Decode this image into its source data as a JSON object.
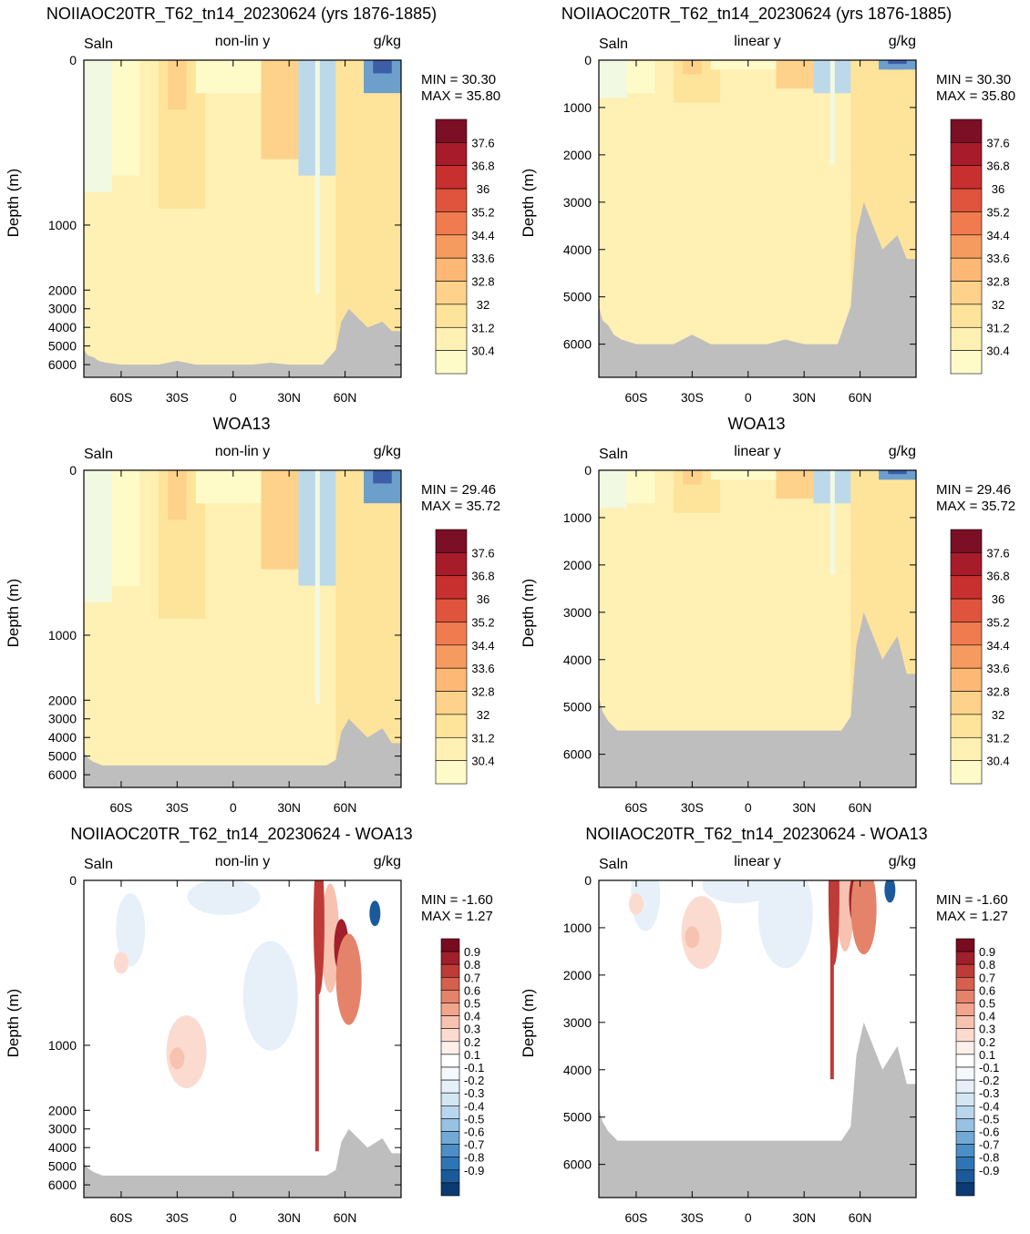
{
  "colors": {
    "land": "#bebebe",
    "salinity_fill": [
      "#2d1e5c",
      "#34378f",
      "#3b5ea6",
      "#4a7fb8",
      "#6d9fcd",
      "#96bddd",
      "#bcd9ea",
      "#dbeef3",
      "#f2f9e2",
      "#fffbc9",
      "#fff0b4",
      "#fee49a",
      "#fed28a",
      "#fcb874",
      "#f69b5f",
      "#ef7b4e",
      "#e0543d",
      "#c8302f",
      "#a71b2a",
      "#7b0f25"
    ],
    "salinity_levels": [
      "30.4",
      "31.2",
      "32",
      "32.8",
      "33.6",
      "34.4",
      "35.2",
      "36",
      "36.8",
      "37.6"
    ],
    "diff_fill": [
      "#0b3b72",
      "#1b5a9a",
      "#2e75b5",
      "#4b8fc6",
      "#72aad5",
      "#98c2e2",
      "#b9d6ec",
      "#d5e6f3",
      "#e7f0f8",
      "#f6f9fc",
      "#ffffff",
      "#fdf0eb",
      "#fbdbd0",
      "#f7c2b0",
      "#f1a58d",
      "#e5836a",
      "#d4604d",
      "#be3b36",
      "#a01f2a",
      "#780b1f"
    ],
    "diff_levels": [
      "-0.9",
      "-0.8",
      "-0.7",
      "-0.6",
      "-0.5",
      "-0.4",
      "-0.3",
      "-0.2",
      "-0.1",
      "0.1",
      "0.2",
      "0.3",
      "0.4",
      "0.5",
      "0.6",
      "0.7",
      "0.8",
      "0.9"
    ]
  },
  "panels": [
    {
      "title": "NOIIAOC20TR_T62_tn14_20230624 (yrs 1876-1885)",
      "left": "Saln",
      "center": "non-lin y",
      "right": "g/kg",
      "min": "MIN =  30.30",
      "max": "MAX =  35.80",
      "kind": "model",
      "scale": "nonlin"
    },
    {
      "title": "NOIIAOC20TR_T62_tn14_20230624 (yrs 1876-1885)",
      "left": "Saln",
      "center": "linear y",
      "right": "g/kg",
      "min": "MIN =  30.30",
      "max": "MAX =  35.80",
      "kind": "model",
      "scale": "linear"
    },
    {
      "title": "WOA13",
      "left": "Saln",
      "center": "non-lin y",
      "right": "g/kg",
      "min": "MIN =  29.46",
      "max": "MAX =  35.72",
      "kind": "obs",
      "scale": "nonlin"
    },
    {
      "title": "WOA13",
      "left": "Saln",
      "center": "linear y",
      "right": "g/kg",
      "min": "MIN =  29.46",
      "max": "MAX =  35.72",
      "kind": "obs",
      "scale": "linear"
    },
    {
      "title": "NOIIAOC20TR_T62_tn14_20230624 - WOA13",
      "left": "Saln",
      "center": "non-lin y",
      "right": "g/kg",
      "min": "MIN =  -1.60",
      "max": "MAX =   1.27",
      "kind": "diff",
      "scale": "nonlin"
    },
    {
      "title": "NOIIAOC20TR_T62_tn14_20230624 - WOA13",
      "left": "Saln",
      "center": "linear y",
      "right": "g/kg",
      "min": "MIN =  -1.60",
      "max": "MAX =   1.27",
      "kind": "diff",
      "scale": "linear"
    }
  ],
  "chart_data": {
    "type": "heatmap",
    "ylabel": "Depth (m)",
    "x_ticks": [
      {
        "value": -60,
        "label": "60S"
      },
      {
        "value": -30,
        "label": "30S"
      },
      {
        "value": 0,
        "label": "0"
      },
      {
        "value": 30,
        "label": "30N"
      },
      {
        "value": 60,
        "label": "60N"
      }
    ],
    "xlim": [
      -80,
      90
    ],
    "y_ticks_nonlin": [
      "0",
      "1000",
      "2000",
      "3000",
      "4000",
      "5000",
      "6000"
    ],
    "y_ticks_linear": [
      "0",
      "1000",
      "2000",
      "3000",
      "4000",
      "5000",
      "6000"
    ],
    "ylim": [
      0,
      6700
    ],
    "bottom_depth_model": [
      [
        -80,
        5200
      ],
      [
        -78,
        5500
      ],
      [
        -75,
        5600
      ],
      [
        -72,
        5800
      ],
      [
        -68,
        5900
      ],
      [
        -60,
        6000
      ],
      [
        -50,
        6000
      ],
      [
        -40,
        6000
      ],
      [
        -30,
        5800
      ],
      [
        -20,
        6000
      ],
      [
        -10,
        6000
      ],
      [
        0,
        6000
      ],
      [
        10,
        6000
      ],
      [
        20,
        5900
      ],
      [
        30,
        6000
      ],
      [
        40,
        6000
      ],
      [
        48,
        6000
      ],
      [
        55,
        5200
      ],
      [
        58,
        3700
      ],
      [
        62,
        3000
      ],
      [
        68,
        3600
      ],
      [
        72,
        4000
      ],
      [
        80,
        3700
      ],
      [
        85,
        4200
      ],
      [
        90,
        4200
      ]
    ],
    "bottom_depth_obs": [
      [
        -80,
        4800
      ],
      [
        -78,
        5100
      ],
      [
        -75,
        5300
      ],
      [
        -70,
        5500
      ],
      [
        -65,
        5500
      ],
      [
        -60,
        5500
      ],
      [
        0,
        5500
      ],
      [
        50,
        5500
      ],
      [
        55,
        5200
      ],
      [
        58,
        3700
      ],
      [
        62,
        3000
      ],
      [
        68,
        3600
      ],
      [
        72,
        4000
      ],
      [
        80,
        3500
      ],
      [
        85,
        4300
      ],
      [
        90,
        4300
      ]
    ]
  }
}
